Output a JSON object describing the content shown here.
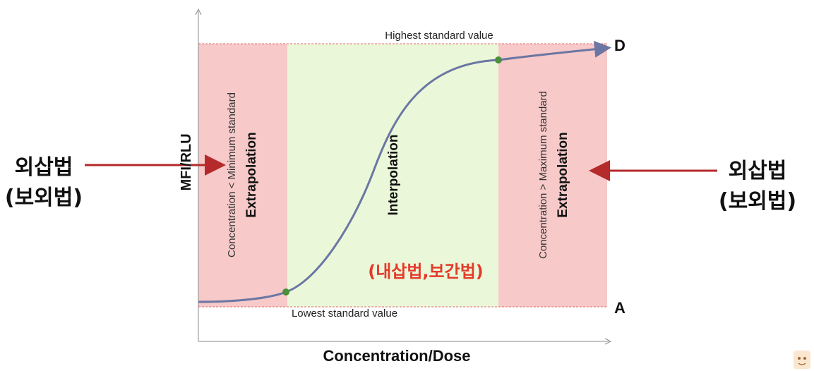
{
  "left_label": {
    "line1": "외삽법",
    "line2": "(보외법)"
  },
  "right_label": {
    "line1": "외삽법",
    "line2": "(보외법)"
  },
  "y_axis_label": "MFI/RLU",
  "x_axis_label": "Concentration/Dose",
  "top_line_label": "Highest standard value",
  "bottom_line_label": "Lowest standard value",
  "d_label": "D",
  "a_label": "A",
  "left_region": {
    "title": "Extrapolation",
    "subtitle": "Concentration < Minimum standard"
  },
  "middle_region": {
    "title": "Interpolation",
    "korean": "(내삽법,보간법)"
  },
  "right_region": {
    "title": "Extrapolation",
    "subtitle": "Concentration > Maximum standard"
  },
  "colors": {
    "extrapolation_fill": "#f7c9c9",
    "interpolation_fill": "#eaf8d9",
    "curve": "#6b77a3",
    "arrow": "#b52a2a",
    "korean_red": "#e53a2a",
    "point": "#4a8f3a"
  }
}
